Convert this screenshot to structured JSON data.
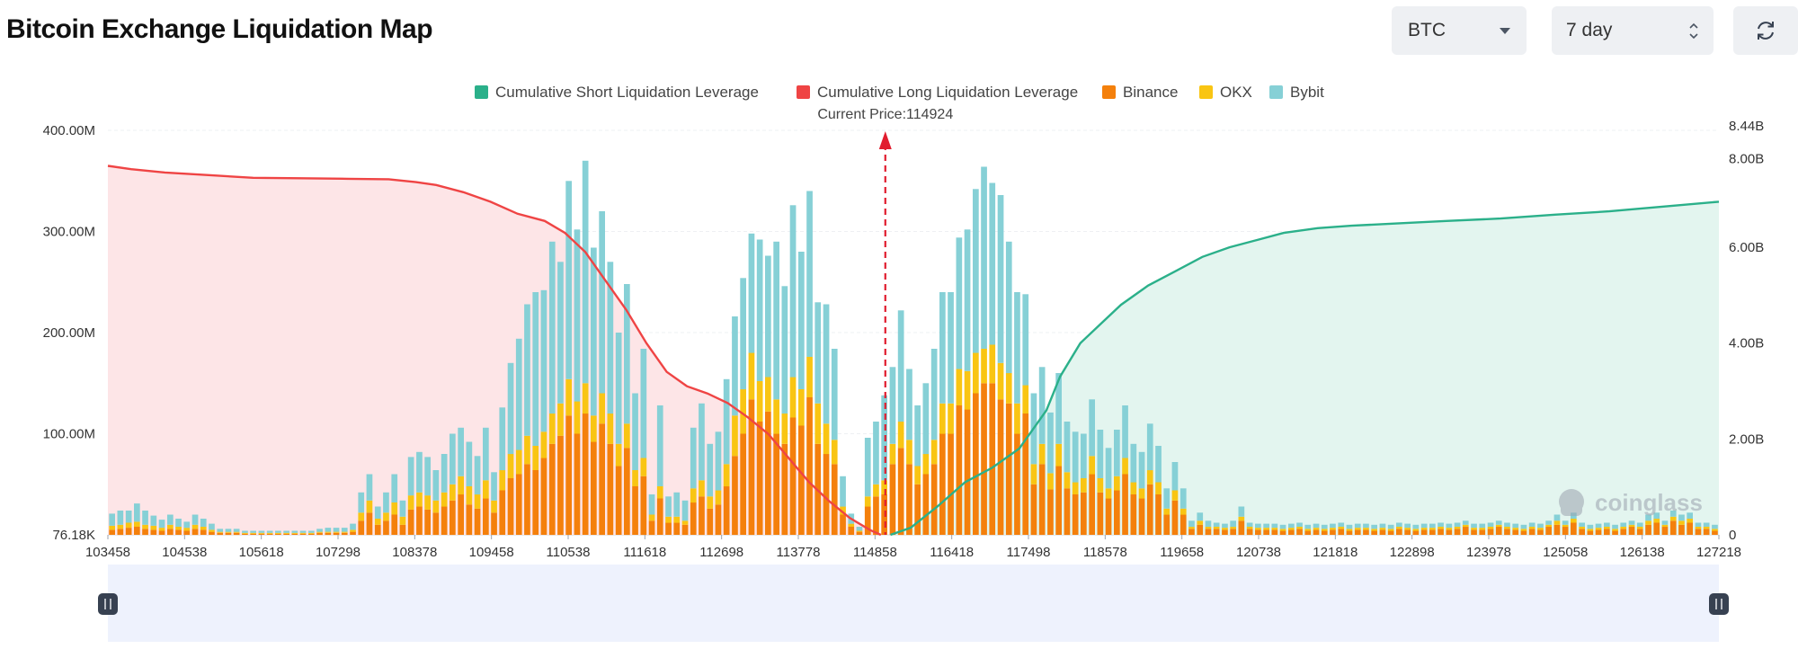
{
  "header": {
    "title": "Bitcoin Exchange Liquidation Map",
    "asset_select": "BTC",
    "period_select": "7 day",
    "refresh_icon": "refresh-icon"
  },
  "watermark": "coinglass",
  "colors": {
    "short": "#2bb08a",
    "long": "#ef4444",
    "binance": "#f4800c",
    "okx": "#f9c513",
    "bybit": "#86d0d6",
    "short_fill": "#e3f5ef",
    "long_fill": "#fde5e7",
    "navigator": "#eef2fd"
  },
  "chart_data": {
    "type": "bar",
    "title": "",
    "xlabel": "",
    "ylabel": "",
    "current_price_label": "Current Price:114924",
    "current_price": 114924,
    "legend": [
      "Cumulative Short Liquidation Leverage",
      "Cumulative Long Liquidation Leverage",
      "Binance",
      "OKX",
      "Bybit"
    ],
    "legend_position": "top-center",
    "x_tick_labels": [
      "103458",
      "104538",
      "105618",
      "107298",
      "108378",
      "109458",
      "110538",
      "111618",
      "112698",
      "113778",
      "114858",
      "116418",
      "117498",
      "118578",
      "119658",
      "120738",
      "121818",
      "122898",
      "123978",
      "125058",
      "126138",
      "127218"
    ],
    "x_range": [
      103458,
      127218
    ],
    "y_left_ticks": [
      "76.18K",
      "100.00M",
      "200.00M",
      "300.00M",
      "400.00M"
    ],
    "y_left_range": [
      0,
      400000000
    ],
    "y_right_ticks": [
      "0",
      "2.00B",
      "4.00B",
      "6.00B",
      "8.00B",
      "8.44B"
    ],
    "y_right_range": [
      0,
      8440000000
    ],
    "grid": true,
    "bar_series": [
      {
        "name": "Binance",
        "values": [
          5,
          6,
          7,
          8,
          6,
          5,
          4,
          6,
          5,
          4,
          6,
          5,
          3,
          2,
          2,
          2,
          1,
          1,
          1,
          1,
          1,
          1,
          1,
          1,
          1,
          2,
          2,
          2,
          2,
          3,
          14,
          22,
          10,
          14,
          20,
          10,
          25,
          28,
          25,
          22,
          28,
          34,
          40,
          30,
          26,
          36,
          22,
          44,
          56,
          60,
          70,
          64,
          76,
          90,
          98,
          118,
          100,
          120,
          92,
          110,
          90,
          68,
          86,
          48,
          58,
          14,
          36,
          12,
          12,
          10,
          32,
          38,
          26,
          30,
          48,
          78,
          100,
          134,
          112,
          122,
          100,
          90,
          116,
          108,
          136,
          90,
          80,
          70,
          20,
          8,
          3,
          28,
          38,
          40,
          70,
          86,
          70,
          50,
          60,
          70,
          100,
          100,
          128,
          124,
          140,
          150,
          150,
          134,
          130,
          100,
          120,
          50,
          70,
          45,
          68,
          46,
          40,
          42,
          60,
          42,
          36,
          44,
          60,
          40,
          36,
          50,
          40,
          20,
          34,
          20,
          6,
          10,
          6,
          6,
          5,
          6,
          14,
          6,
          5,
          5,
          5,
          4,
          5,
          6,
          4,
          5,
          4,
          5,
          6,
          4,
          5,
          5,
          4,
          5,
          4,
          6,
          5,
          4,
          5,
          5,
          6,
          5,
          6,
          8,
          5,
          5,
          6,
          8,
          6,
          5,
          4,
          6,
          5,
          8,
          10,
          8,
          12,
          6,
          4,
          5,
          6,
          4,
          6,
          8,
          6,
          10,
          12,
          8,
          14,
          10,
          12,
          6,
          6,
          4
        ]
      },
      {
        "name": "OKX",
        "values": [
          4,
          4,
          5,
          5,
          4,
          4,
          3,
          4,
          3,
          3,
          4,
          3,
          2,
          1,
          1,
          1,
          1,
          1,
          1,
          1,
          1,
          1,
          1,
          1,
          1,
          1,
          1,
          1,
          1,
          2,
          8,
          12,
          6,
          8,
          12,
          8,
          14,
          14,
          14,
          12,
          14,
          16,
          18,
          18,
          14,
          18,
          12,
          20,
          24,
          24,
          28,
          24,
          26,
          30,
          32,
          36,
          32,
          30,
          26,
          30,
          30,
          22,
          24,
          16,
          18,
          6,
          12,
          6,
          6,
          4,
          14,
          16,
          12,
          14,
          22,
          40,
          44,
          46,
          40,
          34,
          34,
          30,
          40,
          36,
          40,
          40,
          30,
          24,
          8,
          3,
          1,
          10,
          12,
          14,
          20,
          26,
          24,
          18,
          20,
          24,
          30,
          30,
          36,
          38,
          40,
          34,
          38,
          36,
          30,
          30,
          28,
          20,
          20,
          16,
          22,
          16,
          12,
          14,
          18,
          14,
          10,
          14,
          16,
          12,
          10,
          14,
          12,
          6,
          10,
          6,
          2,
          4,
          2,
          2,
          2,
          2,
          4,
          2,
          2,
          2,
          2,
          2,
          2,
          2,
          2,
          2,
          2,
          2,
          2,
          2,
          2,
          2,
          2,
          2,
          2,
          2,
          2,
          2,
          2,
          2,
          2,
          2,
          2,
          2,
          2,
          2,
          2,
          2,
          2,
          2,
          2,
          2,
          2,
          2,
          4,
          2,
          4,
          2,
          2,
          2,
          2,
          2,
          2,
          2,
          2,
          4,
          4,
          2,
          4,
          4,
          4,
          2,
          2,
          2
        ]
      },
      {
        "name": "Bybit",
        "values": [
          12,
          14,
          12,
          18,
          14,
          10,
          8,
          10,
          8,
          6,
          10,
          8,
          6,
          3,
          3,
          3,
          2,
          2,
          2,
          2,
          2,
          2,
          2,
          2,
          2,
          3,
          4,
          4,
          4,
          6,
          20,
          26,
          12,
          20,
          28,
          16,
          38,
          40,
          38,
          30,
          38,
          50,
          48,
          44,
          38,
          52,
          28,
          62,
          90,
          110,
          130,
          152,
          140,
          170,
          140,
          196,
          170,
          220,
          166,
          180,
          150,
          110,
          138,
          76,
          108,
          20,
          80,
          20,
          24,
          20,
          60,
          76,
          52,
          58,
          84,
          98,
          110,
          118,
          140,
          120,
          156,
          126,
          170,
          136,
          164,
          100,
          118,
          90,
          30,
          10,
          4,
          58,
          62,
          84,
          76,
          110,
          70,
          60,
          70,
          90,
          110,
          110,
          130,
          140,
          162,
          180,
          160,
          166,
          130,
          110,
          90,
          70,
          76,
          60,
          70,
          50,
          50,
          44,
          56,
          48,
          40,
          46,
          52,
          38,
          36,
          46,
          36,
          20,
          28,
          20,
          6,
          8,
          6,
          4,
          4,
          6,
          10,
          4,
          4,
          4,
          4,
          4,
          4,
          4,
          4,
          4,
          4,
          4,
          4,
          4,
          4,
          4,
          4,
          4,
          4,
          4,
          4,
          4,
          4,
          4,
          4,
          4,
          4,
          4,
          4,
          4,
          4,
          4,
          4,
          4,
          4,
          4,
          4,
          4,
          6,
          4,
          6,
          4,
          4,
          4,
          4,
          4,
          4,
          4,
          4,
          6,
          6,
          4,
          6,
          6,
          6,
          4,
          4,
          4
        ]
      }
    ],
    "bar_units": "millions USD",
    "long_cumulative": {
      "name": "Cumulative Long Liquidation Leverage",
      "x": [
        103458,
        103800,
        104300,
        105000,
        105600,
        106300,
        107000,
        107600,
        108000,
        108300,
        108700,
        109100,
        109500,
        109900,
        110200,
        110500,
        110800,
        111100,
        111400,
        111700,
        112000,
        112300,
        112600,
        112900,
        113200,
        113500,
        113800,
        114100,
        114400,
        114700,
        114858
      ],
      "y": [
        7.7,
        7.63,
        7.56,
        7.5,
        7.45,
        7.44,
        7.43,
        7.42,
        7.36,
        7.3,
        7.15,
        6.95,
        6.7,
        6.55,
        6.3,
        5.9,
        5.3,
        4.7,
        4.0,
        3.4,
        3.1,
        2.95,
        2.75,
        2.45,
        2.1,
        1.6,
        1.1,
        0.7,
        0.35,
        0.1,
        0.0
      ],
      "units": "billions USD"
    },
    "short_cumulative": {
      "name": "Cumulative Short Liquidation Leverage",
      "x": [
        115000,
        115300,
        115700,
        116100,
        116500,
        116900,
        117300,
        117500,
        117800,
        118100,
        118400,
        118800,
        119200,
        119600,
        120000,
        120400,
        120800,
        121300,
        121800,
        122500,
        123200,
        124000,
        124800,
        125600,
        126400,
        127218
      ],
      "y": [
        0.0,
        0.15,
        0.6,
        1.1,
        1.4,
        1.8,
        2.6,
        3.3,
        4.0,
        4.4,
        4.8,
        5.2,
        5.5,
        5.8,
        6.0,
        6.15,
        6.3,
        6.4,
        6.45,
        6.5,
        6.55,
        6.6,
        6.68,
        6.75,
        6.85,
        6.95
      ],
      "units": "billions USD"
    }
  }
}
